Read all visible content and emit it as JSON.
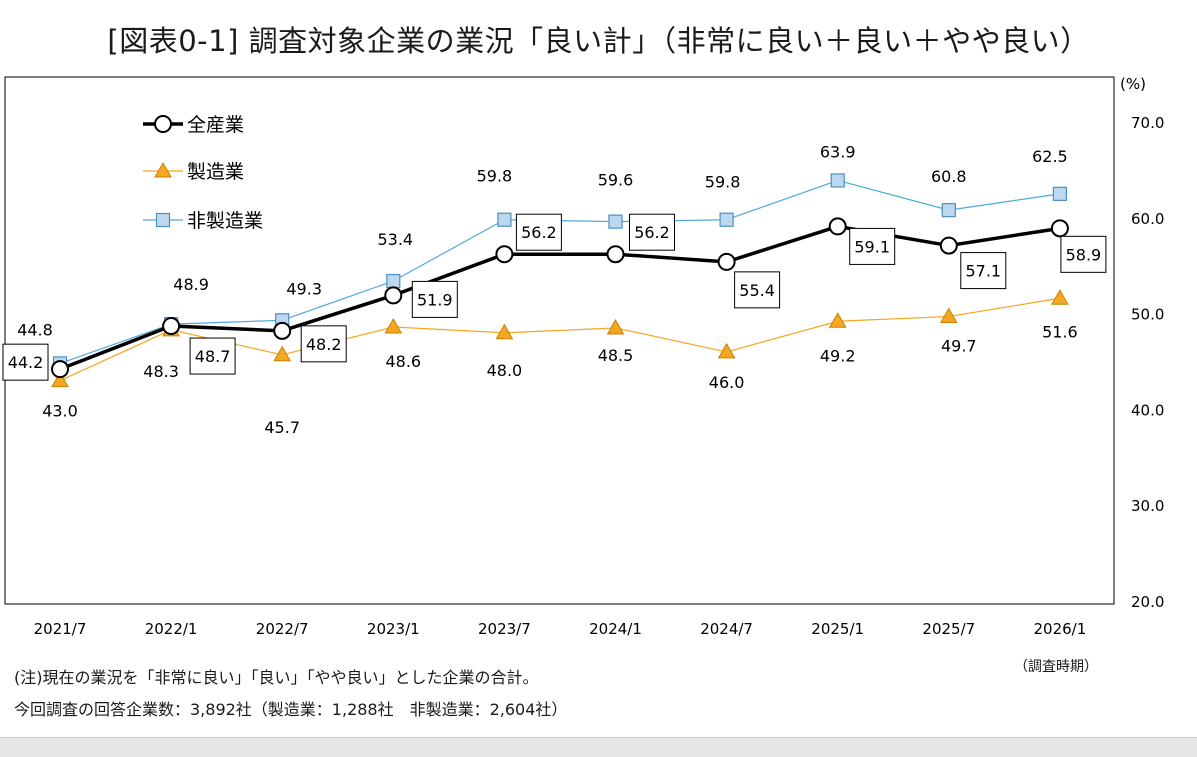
{
  "title": "[図表0-1] 調査対象企業の業況「良い計」（非常に良い＋良い＋やや良い）",
  "notes": {
    "line1": "(注)現在の業況を「非常に良い」「良い」「やや良い」とした企業の合計。",
    "line2": "今回調査の回答企業数：3,892社（製造業：1,288社　非製造業：2,604社）"
  },
  "chart_data": {
    "type": "line",
    "categories": [
      "2021/7",
      "2022/1",
      "2022/7",
      "2023/1",
      "2023/7",
      "2024/1",
      "2024/7",
      "2025/1",
      "2025/7",
      "2026/1"
    ],
    "series": [
      {
        "name": "全産業",
        "values": [
          44.2,
          48.7,
          48.2,
          51.9,
          56.2,
          56.2,
          55.4,
          59.1,
          57.1,
          58.9
        ],
        "color": "#000000",
        "marker": "circle",
        "boxed_labels": true
      },
      {
        "name": "製造業",
        "values": [
          43.0,
          48.3,
          45.7,
          48.6,
          48.0,
          48.5,
          46.0,
          49.2,
          49.7,
          51.6
        ],
        "color": "#f5a623",
        "marker": "triangle",
        "boxed_labels": false
      },
      {
        "name": "非製造業",
        "values": [
          44.8,
          48.9,
          49.3,
          53.4,
          59.8,
          59.6,
          59.8,
          63.9,
          60.8,
          62.5
        ],
        "color": "#4ea9db",
        "marker": "square",
        "boxed_labels": false
      }
    ],
    "ylim": [
      20,
      70
    ],
    "yticks": [
      "20.0",
      "30.0",
      "40.0",
      "50.0",
      "60.0",
      "70.0"
    ],
    "yunit": "(%)",
    "xunit": "（調査時期）",
    "legend_position": "top-left",
    "grid": false
  }
}
